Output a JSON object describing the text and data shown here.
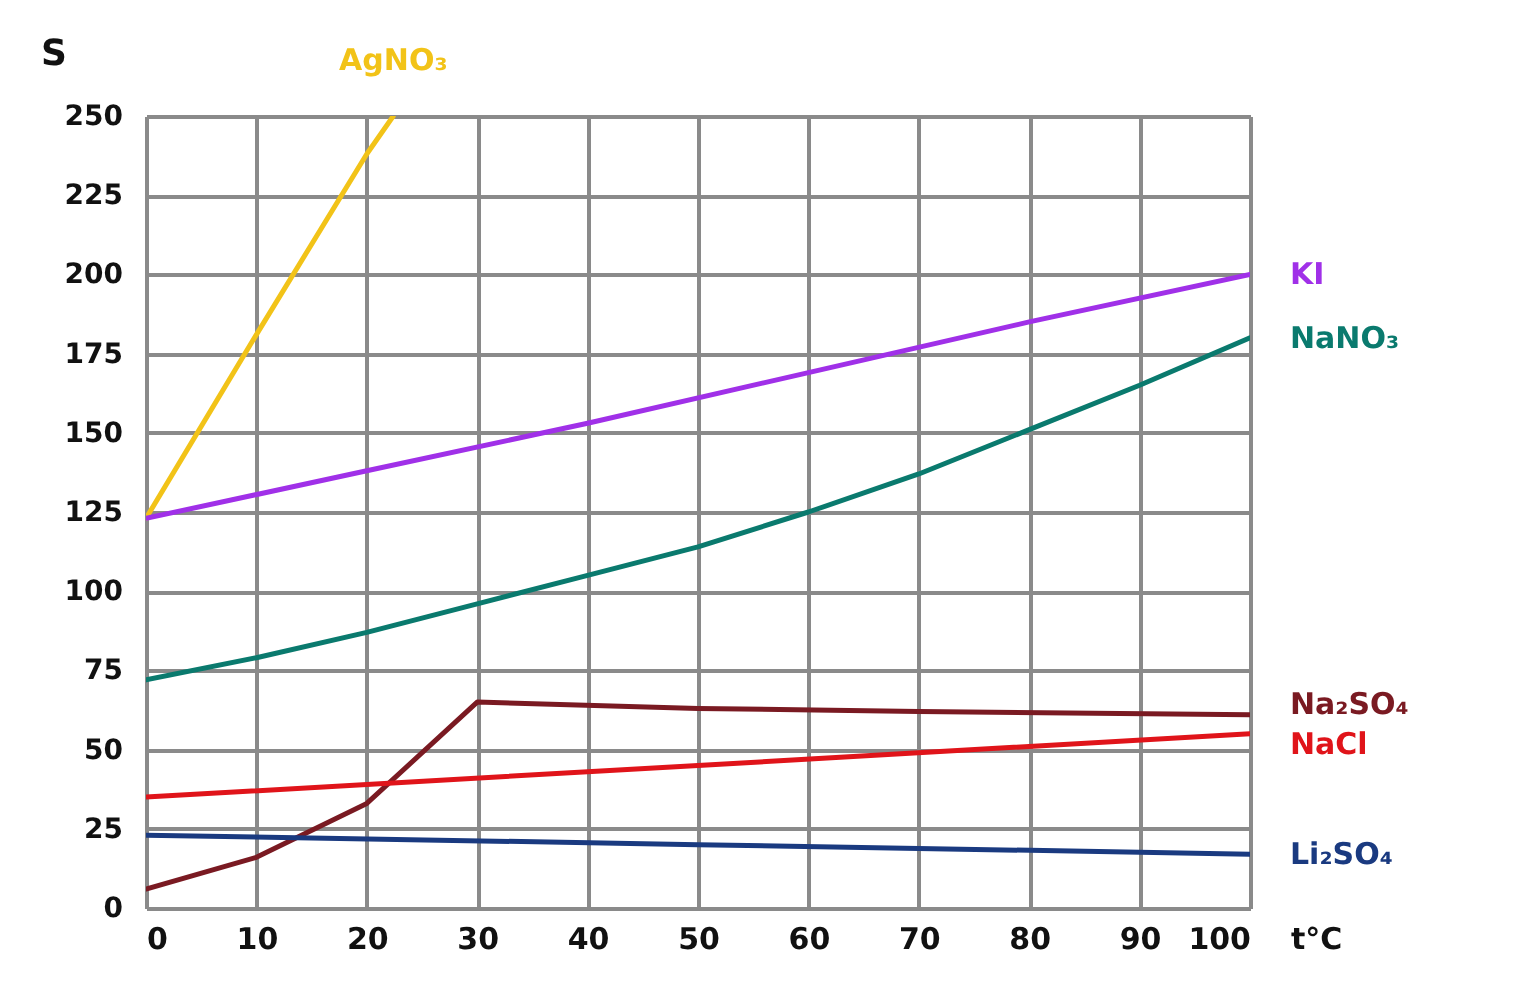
{
  "chart_data": {
    "type": "line",
    "xlabel": "t°C",
    "ylabel": "S",
    "xlim": [
      0,
      100
    ],
    "xticks": [
      0,
      10,
      20,
      30,
      40,
      50,
      60,
      70,
      80,
      90,
      100
    ],
    "ylim": [
      0,
      250
    ],
    "yticks": [
      0,
      25,
      50,
      75,
      100,
      125,
      150,
      175,
      200,
      225,
      250
    ],
    "grid": true,
    "legend": false,
    "marker": "none",
    "line_style": "solid",
    "series": [
      {
        "name": "AgNO₃",
        "color": "#f2c318",
        "x": [
          0,
          10,
          20,
          22.4
        ],
        "values": [
          123,
          181,
          238,
          250
        ]
      },
      {
        "name": "KI",
        "color": "#a030e8",
        "x": [
          0,
          20,
          40,
          60,
          80,
          100
        ],
        "values": [
          123,
          138,
          153,
          169,
          185,
          200
        ]
      },
      {
        "name": "NaNO₃",
        "color": "#0a7a6e",
        "x": [
          0,
          10,
          20,
          30,
          40,
          50,
          60,
          70,
          80,
          90,
          100
        ],
        "values": [
          72,
          79,
          87,
          96,
          105,
          114,
          125,
          137,
          151,
          165,
          180
        ]
      },
      {
        "name": "Na₂SO₄",
        "color": "#7a1a22",
        "x": [
          0,
          10,
          20,
          30,
          50,
          70,
          100
        ],
        "values": [
          6,
          16,
          33,
          65,
          63,
          62,
          61
        ]
      },
      {
        "name": "NaCl",
        "color": "#e0141a",
        "x": [
          0,
          50,
          100
        ],
        "values": [
          35,
          45,
          55
        ]
      },
      {
        "name": "Li₂SO₄",
        "color": "#1a3a80",
        "x": [
          0,
          50,
          100
        ],
        "values": [
          23,
          20,
          17
        ]
      }
    ]
  }
}
